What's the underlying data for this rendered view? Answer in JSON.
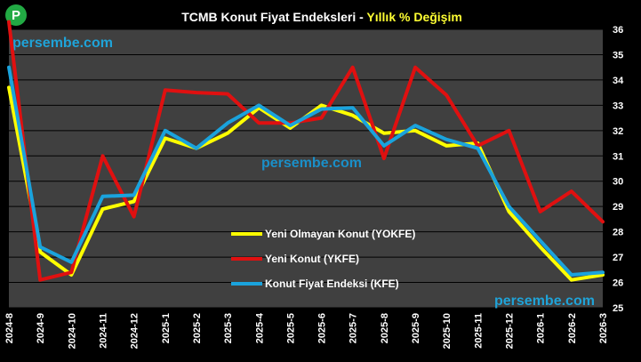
{
  "logo": {
    "letter": "P",
    "color": "#22aa44"
  },
  "chart_data": {
    "type": "line",
    "title": "TCMB Konut Fiyat Endeksleri - ",
    "subtitle": "Yıllık % Değişim",
    "xlabel": "",
    "ylabel": "",
    "ylim": [
      25,
      36
    ],
    "yticks": [
      25,
      26,
      27,
      28,
      29,
      30,
      31,
      32,
      33,
      34,
      35,
      36
    ],
    "y_axis_side": "right",
    "grid": true,
    "legend_position": "center-right",
    "categories": [
      "2024-8",
      "2024-9",
      "2024-10",
      "2024-11",
      "2024-12",
      "2025-1",
      "2025-2",
      "2025-3",
      "2025-4",
      "2025-5",
      "2025-6",
      "2025-7",
      "2025-8",
      "2025-9",
      "2025-10",
      "2025-11",
      "2025-12",
      "2026-1",
      "2026-2",
      "2026-3"
    ],
    "series": [
      {
        "name": "Yeni Olmayan Konut (YOKFE)",
        "color": "#ffff00",
        "values": [
          33.7,
          27.2,
          26.3,
          28.9,
          29.2,
          31.7,
          31.3,
          31.9,
          32.9,
          32.1,
          33.0,
          32.6,
          31.9,
          32.0,
          31.4,
          31.5,
          28.8,
          27.4,
          26.1,
          26.3
        ]
      },
      {
        "name": "Yeni Konut (YKFE)",
        "color": "#e01010",
        "values": [
          36.3,
          26.1,
          26.4,
          31.0,
          28.6,
          33.6,
          33.5,
          33.45,
          32.3,
          32.3,
          32.5,
          34.5,
          30.9,
          34.5,
          33.4,
          31.4,
          32.0,
          28.8,
          29.6,
          28.4
        ]
      },
      {
        "name": "Konut Fiyat Endeksi (KFE)",
        "color": "#1aa3dd",
        "values": [
          34.5,
          27.4,
          26.8,
          29.4,
          29.45,
          32.0,
          31.3,
          32.3,
          33.0,
          32.2,
          32.85,
          32.9,
          31.4,
          32.2,
          31.65,
          31.3,
          29.0,
          27.65,
          26.3,
          26.4
        ]
      }
    ]
  },
  "watermarks": [
    {
      "id": "top-left",
      "text": "persembe.com",
      "color": "#1fa3d8"
    },
    {
      "id": "center",
      "text": "persembe.com",
      "color": "#1a8fc8"
    },
    {
      "id": "bottom-right",
      "text": "persembe.com",
      "color": "#1fa3d8"
    }
  ]
}
